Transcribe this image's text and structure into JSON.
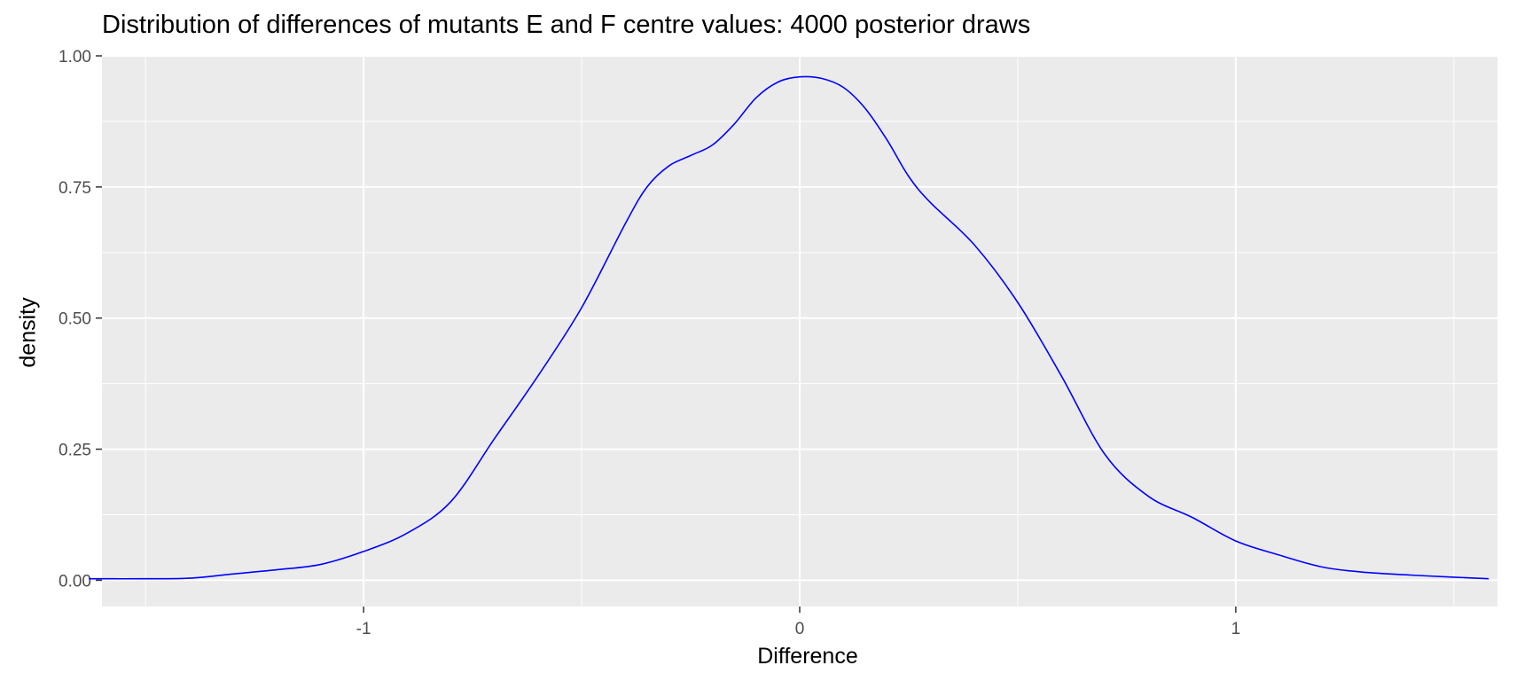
{
  "chart_data": {
    "type": "line",
    "title": "Distribution of differences of mutants E and F centre values: 4000 posterior draws",
    "xlabel": "Difference",
    "ylabel": "density",
    "xlim": [
      -1.6,
      1.6
    ],
    "ylim": [
      -0.05,
      1.0
    ],
    "x_ticks": [
      -1,
      0,
      1
    ],
    "x_tick_labels": [
      "-1",
      "0",
      "1"
    ],
    "y_ticks": [
      0,
      0.25,
      0.5,
      0.75,
      1.0
    ],
    "y_tick_labels": [
      "0.00",
      "0.25",
      "0.50",
      "0.75",
      "1.00"
    ],
    "grid": true,
    "legend": "none",
    "colors": {
      "line": "#0000ff",
      "panel": "#ebebeb",
      "grid": "#ffffff"
    },
    "series": [
      {
        "x": [
          -1.63,
          -1.5,
          -1.4,
          -1.3,
          -1.2,
          -1.1,
          -1.0,
          -0.9,
          -0.8,
          -0.7,
          -0.6,
          -0.5,
          -0.4,
          -0.35,
          -0.3,
          -0.25,
          -0.2,
          -0.15,
          -0.1,
          -0.05,
          0.0,
          0.05,
          0.1,
          0.15,
          0.2,
          0.25,
          0.3,
          0.4,
          0.5,
          0.6,
          0.7,
          0.8,
          0.9,
          1.0,
          1.1,
          1.2,
          1.3,
          1.4,
          1.5,
          1.58
        ],
        "y": [
          0.003,
          0.003,
          0.004,
          0.012,
          0.02,
          0.03,
          0.055,
          0.09,
          0.15,
          0.27,
          0.39,
          0.52,
          0.68,
          0.75,
          0.79,
          0.81,
          0.83,
          0.87,
          0.92,
          0.95,
          0.96,
          0.957,
          0.94,
          0.9,
          0.84,
          0.77,
          0.72,
          0.64,
          0.53,
          0.39,
          0.24,
          0.16,
          0.12,
          0.075,
          0.048,
          0.025,
          0.015,
          0.01,
          0.006,
          0.003
        ]
      }
    ]
  }
}
